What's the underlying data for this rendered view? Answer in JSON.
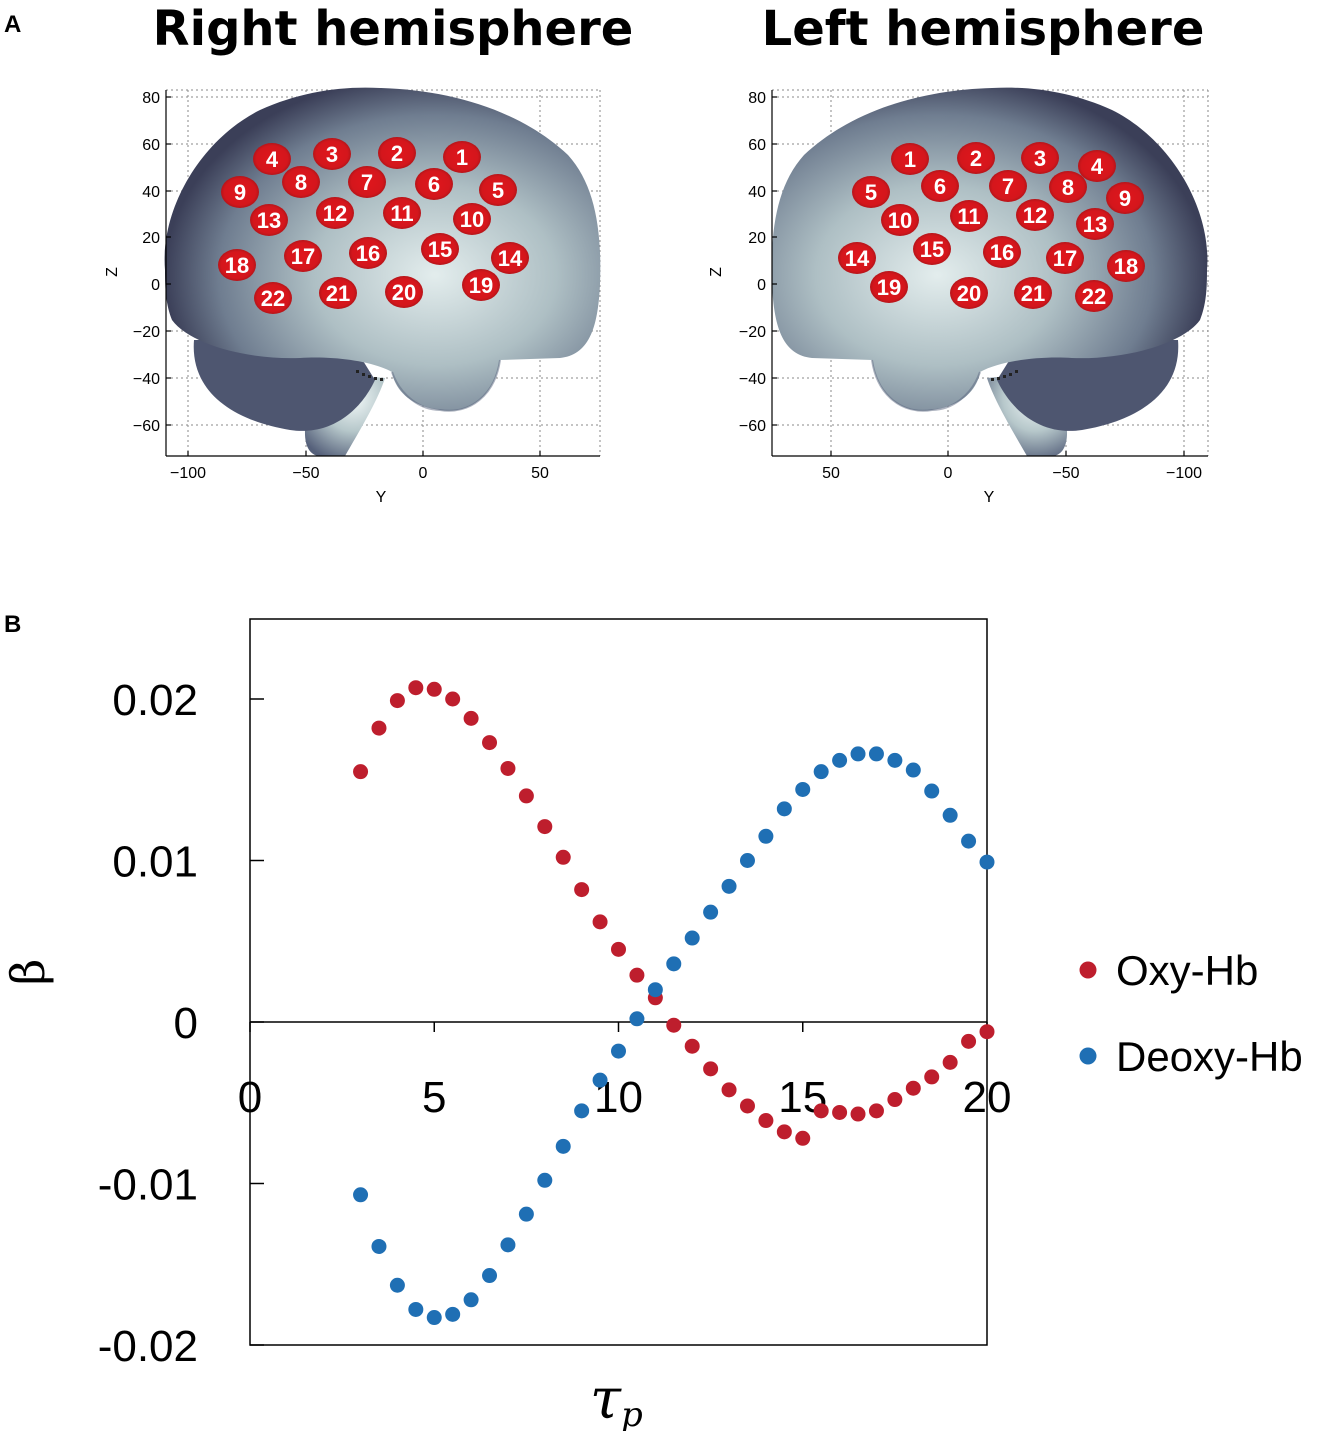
{
  "panel_a": {
    "letter": "A",
    "right": {
      "title": "Right hemisphere",
      "x_axis_label": "Y",
      "y_axis_label": "Z",
      "x_ticks": [
        "−100",
        "−50",
        "0",
        "50"
      ],
      "y_ticks": [
        "80",
        "60",
        "40",
        "20",
        "0",
        "−20",
        "−40",
        "−60"
      ],
      "channels": [
        "1",
        "2",
        "3",
        "4",
        "5",
        "6",
        "7",
        "8",
        "9",
        "10",
        "11",
        "12",
        "13",
        "14",
        "15",
        "16",
        "17",
        "18",
        "19",
        "20",
        "21",
        "22"
      ]
    },
    "left": {
      "title": "Left hemisphere",
      "x_axis_label": "Y",
      "y_axis_label": "Z",
      "x_ticks": [
        "50",
        "0",
        "−50",
        "−100"
      ],
      "y_ticks": [
        "80",
        "60",
        "40",
        "20",
        "0",
        "−20",
        "−40",
        "−60"
      ],
      "channels": [
        "1",
        "2",
        "3",
        "4",
        "5",
        "6",
        "7",
        "8",
        "9",
        "10",
        "11",
        "12",
        "13",
        "14",
        "15",
        "16",
        "17",
        "18",
        "19",
        "20",
        "21",
        "22"
      ]
    },
    "colors": {
      "channel_fill": "#d4161c",
      "brain_dark": "#3b3f58",
      "brain_light": "#dfeaea"
    }
  },
  "chart_data": {
    "panel_letter": "B",
    "type": "scatter",
    "xlabel_main": "τ",
    "xlabel_sub": "p",
    "ylabel": "β",
    "xlim": [
      0,
      20
    ],
    "ylim": [
      -0.02,
      0.0225
    ],
    "x_ticks": [
      "0",
      "5",
      "10",
      "15",
      "20"
    ],
    "y_ticks": [
      "0.02",
      "0.01",
      "0",
      "-0.01",
      "-0.02"
    ],
    "legend_position": "right",
    "series": [
      {
        "name": "Oxy-Hb",
        "color": "#be1e2d",
        "x": [
          3,
          3.5,
          4,
          4.5,
          5,
          5.5,
          6,
          6.5,
          7,
          7.5,
          8,
          8.5,
          9,
          9.5,
          10,
          10.5,
          11,
          11.5,
          12,
          12.5,
          13,
          13.5,
          14,
          14.5,
          15,
          15.5,
          16,
          16.5,
          17,
          17.5,
          18,
          18.5,
          19,
          19.5,
          20
        ],
        "y": [
          0.0155,
          0.0182,
          0.0199,
          0.0207,
          0.0206,
          0.02,
          0.0188,
          0.0173,
          0.0157,
          0.014,
          0.0121,
          0.0102,
          0.0082,
          0.0062,
          0.0045,
          0.0029,
          0.0015,
          -0.0002,
          -0.0015,
          -0.0029,
          -0.0042,
          -0.0052,
          -0.0061,
          -0.0068,
          -0.0072,
          -0.0055,
          -0.0056,
          -0.0057,
          -0.0055,
          -0.0048,
          -0.0041,
          -0.0034,
          -0.0025,
          -0.0012,
          -0.0006
        ]
      },
      {
        "name": "Deoxy-Hb",
        "color": "#1f6fb4",
        "x": [
          3,
          3.5,
          4,
          4.5,
          5,
          5.5,
          6,
          6.5,
          7,
          7.5,
          8,
          8.5,
          9,
          9.5,
          10,
          10.5,
          11,
          11.5,
          12,
          12.5,
          13,
          13.5,
          14,
          14.5,
          15,
          15.5,
          16,
          16.5,
          17,
          17.5,
          18,
          18.5,
          19,
          19.5,
          20
        ],
        "y": [
          -0.0107,
          -0.0139,
          -0.0163,
          -0.0178,
          -0.0183,
          -0.0181,
          -0.0172,
          -0.0157,
          -0.0138,
          -0.0119,
          -0.0098,
          -0.0077,
          -0.0055,
          -0.0036,
          -0.0018,
          0.0002,
          0.002,
          0.0036,
          0.0052,
          0.0068,
          0.0084,
          0.01,
          0.0115,
          0.0132,
          0.0144,
          0.0155,
          0.0162,
          0.0166,
          0.0166,
          0.0162,
          0.0156,
          0.0143,
          0.0128,
          0.0112,
          0.0099
        ]
      }
    ]
  }
}
